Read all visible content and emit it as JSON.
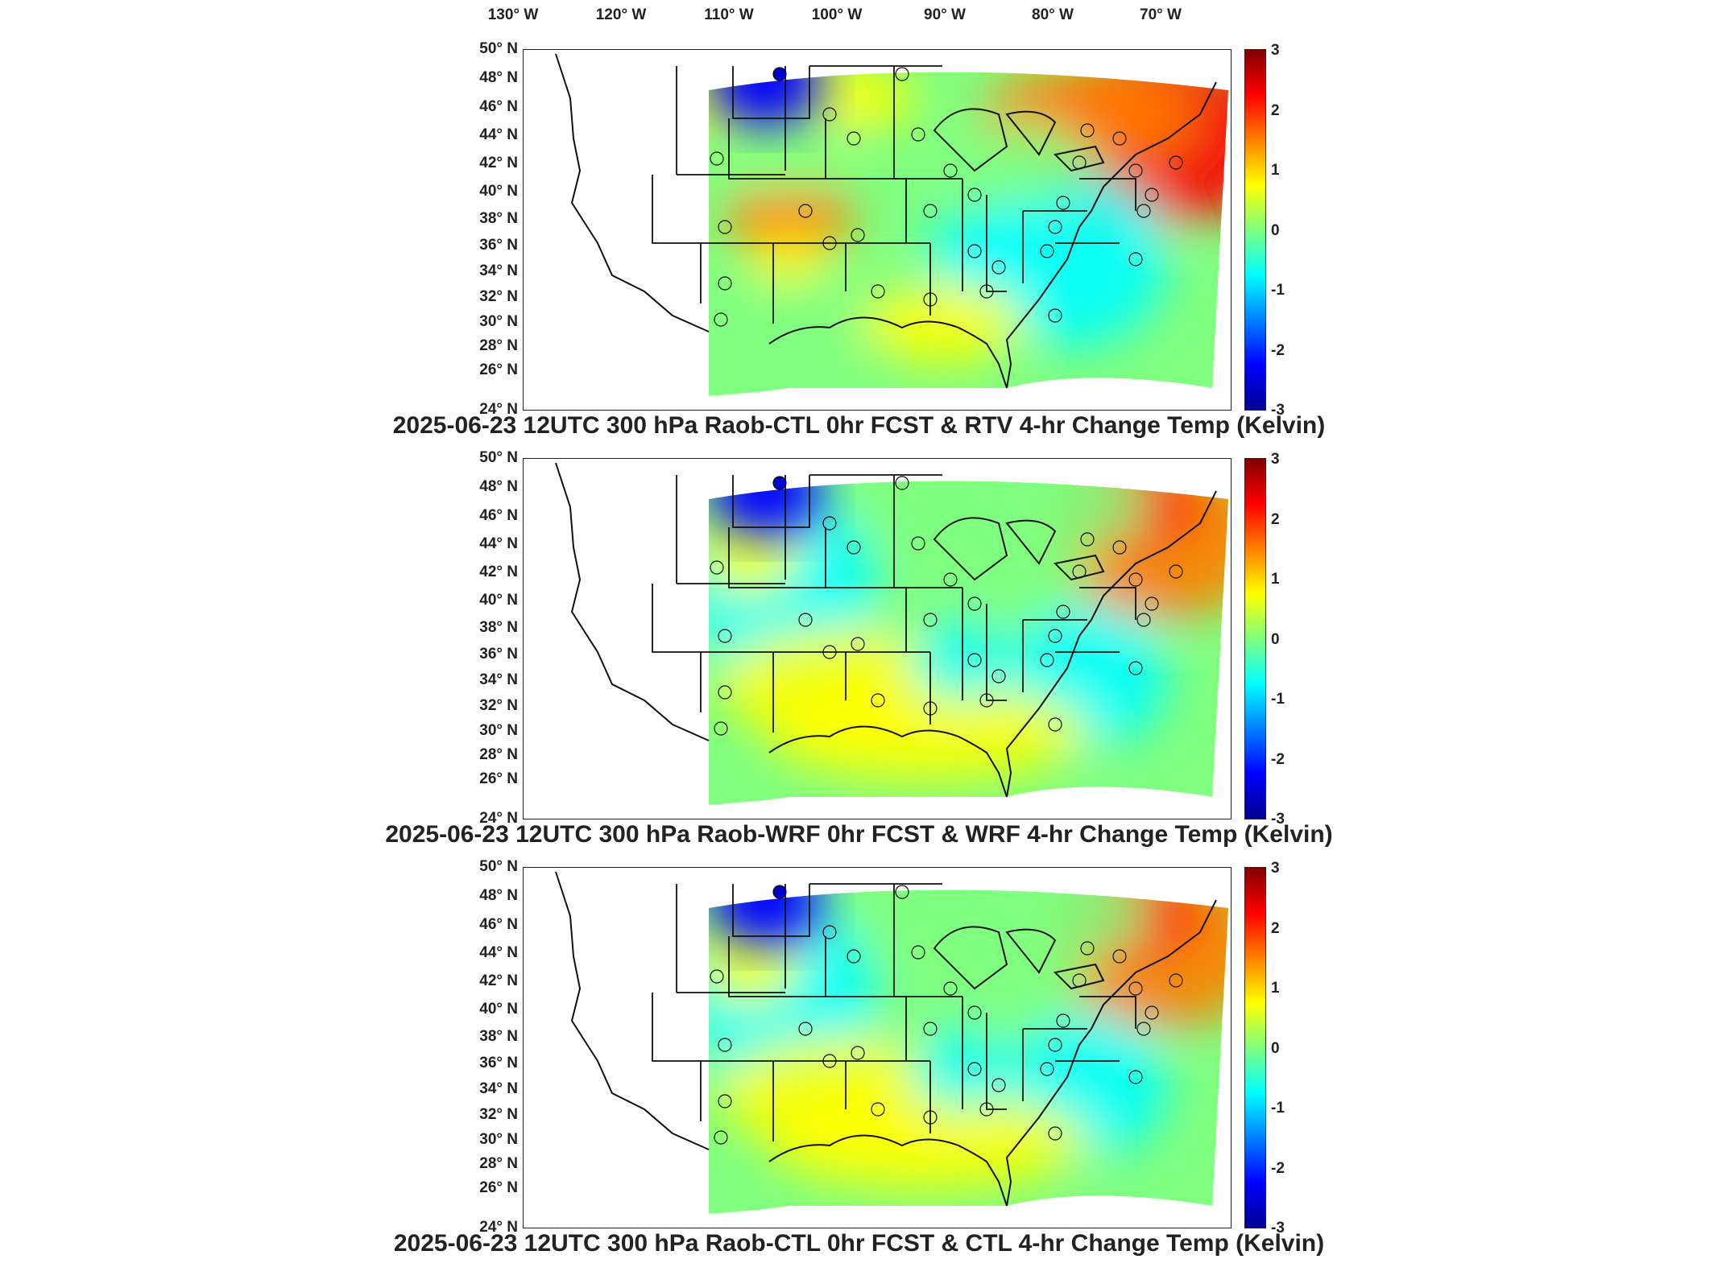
{
  "longitude_labels": [
    "130° W",
    "120° W",
    "110° W",
    "100° W",
    "90° W",
    "80° W",
    "70° W"
  ],
  "latitude_labels": [
    "50° N",
    "48° N",
    "46° N",
    "44° N",
    "42° N",
    "40° N",
    "38° N",
    "36° N",
    "34° N",
    "32° N",
    "30° N",
    "28° N",
    "26° N",
    "24° N"
  ],
  "colorbar": {
    "ticks": [
      "3",
      "2",
      "1",
      "0",
      "-1",
      "-2",
      "-3"
    ],
    "min": -3,
    "max": 3,
    "colors": [
      "#00008f",
      "#0000ff",
      "#0080ff",
      "#00ffff",
      "#80ff80",
      "#ffff00",
      "#ff8000",
      "#ff0000",
      "#800000"
    ]
  },
  "panels": [
    {
      "title": "2025-06-23 12UTC 300 hPa Raob-CTL 0hr FCST & RTV 4-hr Change Temp (Kelvin)"
    },
    {
      "title": "2025-06-23 12UTC 300 hPa Raob-WRF 0hr FCST & WRF 4-hr Change Temp (Kelvin)"
    },
    {
      "title": "2025-06-23 12UTC 300 hPa Raob-CTL 0hr FCST & CTL 4-hr Change Temp (Kelvin)"
    }
  ]
}
